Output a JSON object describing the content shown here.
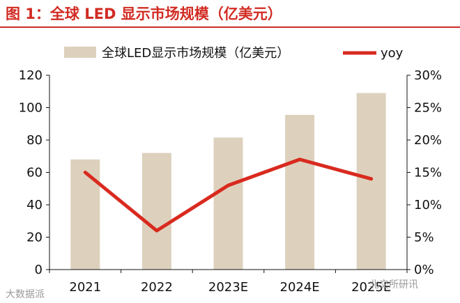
{
  "figure_title": "图 1：全球 LED 显示市场规模（亿美元）",
  "colors": {
    "title": "#d12b22",
    "bar": "#ddd1bd",
    "line": "#d92a1f",
    "axis": "#111111"
  },
  "chart_data": {
    "type": "bar",
    "title": "图 1：全球 LED 显示市场规模（亿美元）",
    "categories": [
      "2021",
      "2022",
      "2023E",
      "2024E",
      "2025E"
    ],
    "series": [
      {
        "name": "全球LED显示市场规模（亿美元）",
        "type": "bar",
        "axis": "left",
        "values": [
          68,
          72,
          81.5,
          95.5,
          109
        ]
      },
      {
        "name": "yoy",
        "type": "line",
        "axis": "right",
        "values": [
          15,
          6,
          13,
          17,
          14
        ]
      }
    ],
    "y_left": {
      "ylim": [
        0,
        120
      ],
      "ticks": [
        "0",
        "20",
        "40",
        "60",
        "80",
        "100",
        "120"
      ]
    },
    "y_right": {
      "ylim": [
        0,
        30
      ],
      "ticks": [
        "0%",
        "5%",
        "10%",
        "15%",
        "20%",
        "25%",
        "30%"
      ]
    },
    "grid": false,
    "legend_position": "top"
  },
  "watermark": {
    "left": "大数据派",
    "right": "北交所研讯"
  }
}
